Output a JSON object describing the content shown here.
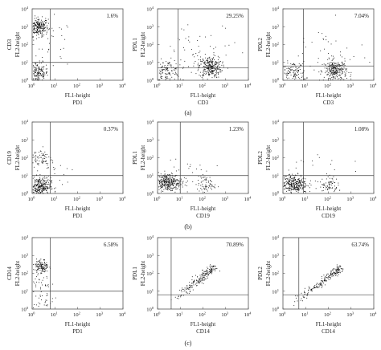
{
  "figure": {
    "decades": [
      "10^0",
      "10^1",
      "10^2",
      "10^3",
      "10^4"
    ],
    "row_captions": [
      "(a)",
      "(b)",
      "(c)"
    ]
  },
  "chart_data": [
    {
      "type": "scatter",
      "row": 0,
      "col": 0,
      "percent": "1.6%",
      "x_label": [
        "FL1-height",
        "PD1"
      ],
      "y_label": [
        "FL2-height",
        "CD3"
      ],
      "x_gate": 0.8,
      "y_gate": 1.0,
      "xlim": [
        0,
        4
      ],
      "ylim": [
        0,
        4
      ],
      "scale": "log",
      "populations": [
        {
          "x": 0.25,
          "y": 3.0,
          "sx": 0.22,
          "sy": 0.25,
          "n": 240
        },
        {
          "x": 0.25,
          "y": 0.4,
          "sx": 0.22,
          "sy": 0.3,
          "n": 170
        },
        {
          "x": 0.8,
          "y": 2.0,
          "sx": 0.5,
          "sy": 0.7,
          "n": 35
        }
      ]
    },
    {
      "type": "scatter",
      "row": 0,
      "col": 1,
      "percent": "29.25%",
      "x_label": [
        "FL1-height",
        "CD3"
      ],
      "y_label": [
        "FL2-height",
        "PDL1"
      ],
      "x_gate": 0.9,
      "y_gate": 0.7,
      "xlim": [
        0,
        4
      ],
      "ylim": [
        0,
        4
      ],
      "scale": "log",
      "populations": [
        {
          "x": 0.4,
          "y": 0.55,
          "sx": 0.3,
          "sy": 0.3,
          "n": 130
        },
        {
          "x": 2.3,
          "y": 0.75,
          "sx": 0.25,
          "sy": 0.3,
          "n": 280
        },
        {
          "x": 2.0,
          "y": 1.6,
          "sx": 1.0,
          "sy": 0.8,
          "n": 55
        }
      ]
    },
    {
      "type": "scatter",
      "row": 0,
      "col": 2,
      "percent": "7.04%",
      "x_label": [
        "FL1-height",
        "CD3"
      ],
      "y_label": [
        "FL2-height",
        "PDL2"
      ],
      "x_gate": 0.9,
      "y_gate": 0.8,
      "xlim": [
        0,
        4
      ],
      "ylim": [
        0,
        4
      ],
      "scale": "log",
      "populations": [
        {
          "x": 0.4,
          "y": 0.45,
          "sx": 0.3,
          "sy": 0.3,
          "n": 130
        },
        {
          "x": 2.3,
          "y": 0.55,
          "sx": 0.25,
          "sy": 0.3,
          "n": 280
        },
        {
          "x": 2.0,
          "y": 1.6,
          "sx": 1.0,
          "sy": 0.8,
          "n": 40
        }
      ]
    },
    {
      "type": "scatter",
      "row": 1,
      "col": 0,
      "percent": "0.37%",
      "x_label": [
        "FL1-height",
        "PD1"
      ],
      "y_label": [
        "FL2-height",
        "CD19"
      ],
      "x_gate": 0.8,
      "y_gate": 1.0,
      "xlim": [
        0,
        4
      ],
      "ylim": [
        0,
        4
      ],
      "scale": "log",
      "populations": [
        {
          "x": 0.3,
          "y": 0.4,
          "sx": 0.25,
          "sy": 0.25,
          "n": 300
        },
        {
          "x": 0.35,
          "y": 2.0,
          "sx": 0.25,
          "sy": 0.3,
          "n": 70
        },
        {
          "x": 0.9,
          "y": 1.2,
          "sx": 0.5,
          "sy": 0.6,
          "n": 25
        }
      ]
    },
    {
      "type": "scatter",
      "row": 1,
      "col": 1,
      "percent": "1.23%",
      "x_label": [
        "FL1-height",
        "CD19"
      ],
      "y_label": [
        "FL2-height",
        "PDL1"
      ],
      "x_gate": 1.0,
      "y_gate": 1.0,
      "xlim": [
        0,
        4
      ],
      "ylim": [
        0,
        4
      ],
      "scale": "log",
      "populations": [
        {
          "x": 0.45,
          "y": 0.65,
          "sx": 0.3,
          "sy": 0.25,
          "n": 330
        },
        {
          "x": 2.1,
          "y": 0.5,
          "sx": 0.2,
          "sy": 0.25,
          "n": 70
        },
        {
          "x": 1.2,
          "y": 1.3,
          "sx": 0.8,
          "sy": 0.6,
          "n": 20
        }
      ]
    },
    {
      "type": "scatter",
      "row": 1,
      "col": 2,
      "percent": "1.08%",
      "x_label": [
        "FL1-height",
        "CD19"
      ],
      "y_label": [
        "FL2-height",
        "PDL2"
      ],
      "x_gate": 0.9,
      "y_gate": 1.0,
      "xlim": [
        0,
        4
      ],
      "ylim": [
        0,
        4
      ],
      "scale": "log",
      "populations": [
        {
          "x": 0.45,
          "y": 0.55,
          "sx": 0.3,
          "sy": 0.25,
          "n": 330
        },
        {
          "x": 2.0,
          "y": 0.5,
          "sx": 0.2,
          "sy": 0.25,
          "n": 70
        },
        {
          "x": 1.2,
          "y": 1.3,
          "sx": 0.8,
          "sy": 0.6,
          "n": 20
        }
      ]
    },
    {
      "type": "scatter",
      "row": 2,
      "col": 0,
      "percent": "6.58%",
      "x_label": [
        "FL1-height",
        "PD1"
      ],
      "y_label": [
        "FL2-height",
        "CD14"
      ],
      "x_gate": 0.8,
      "y_gate": 1.0,
      "xlim": [
        0,
        4
      ],
      "ylim": [
        0,
        4
      ],
      "scale": "log",
      "populations": [
        {
          "x": 0.4,
          "y": 2.4,
          "sx": 0.15,
          "sy": 0.2,
          "n": 120
        },
        {
          "x": 0.3,
          "y": 1.3,
          "sx": 0.25,
          "sy": 0.5,
          "n": 40
        },
        {
          "x": 0.5,
          "y": 0.4,
          "sx": 0.3,
          "sy": 0.3,
          "n": 25
        }
      ]
    },
    {
      "type": "scatter",
      "row": 2,
      "col": 1,
      "percent": "70.89%",
      "x_label": [
        "FL1-height",
        "CD14"
      ],
      "y_label": [
        "FL2-height",
        "PDL1"
      ],
      "x_gate": 0.6,
      "y_gate": 0.8,
      "xlim": [
        0,
        4
      ],
      "ylim": [
        0,
        4
      ],
      "scale": "log",
      "diagonal": {
        "x0": 0.5,
        "y0": 0.3,
        "x1": 2.5,
        "y1": 2.4,
        "n": 200,
        "spread": 0.1
      }
    },
    {
      "type": "scatter",
      "row": 2,
      "col": 2,
      "percent": "63.74%",
      "x_label": [
        "FL1-height",
        "CD14"
      ],
      "y_label": [
        "FL2-height",
        "PDL2"
      ],
      "x_gate": 0.7,
      "y_gate": 0.8,
      "xlim": [
        0,
        4
      ],
      "ylim": [
        0,
        4
      ],
      "scale": "log",
      "diagonal": {
        "x0": 0.3,
        "y0": 0.2,
        "x1": 2.5,
        "y1": 2.3,
        "n": 200,
        "spread": 0.1
      }
    }
  ]
}
